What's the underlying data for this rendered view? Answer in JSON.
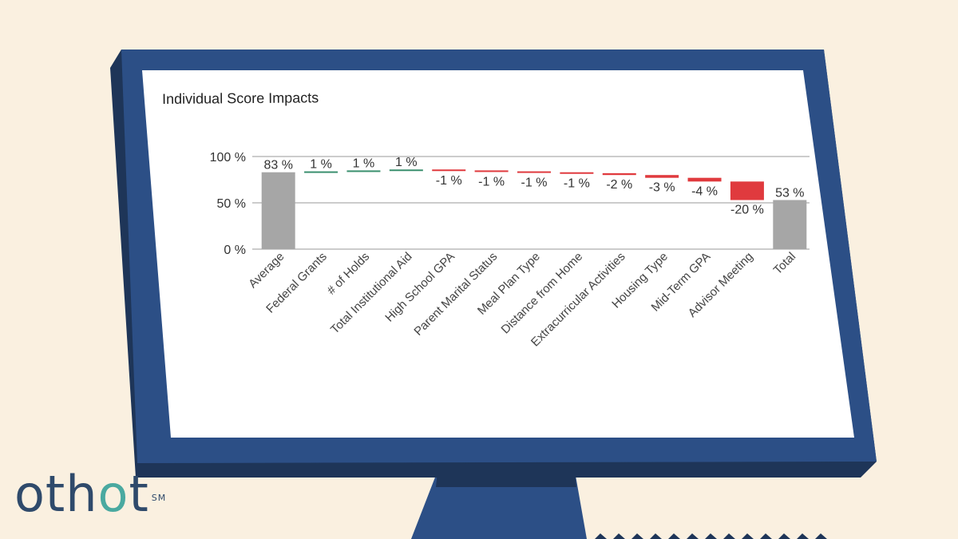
{
  "brand": {
    "logo_main": "oth",
    "logo_accent": "o",
    "logo_end": "t",
    "logo_mark": "SM"
  },
  "colors": {
    "background": "#faf0e0",
    "monitor_frame": "#2c4f86",
    "monitor_shadow": "#1e3558",
    "screen": "#ffffff",
    "total_bar": "#a6a6a6",
    "positive": "#3a8f6e",
    "negative": "#e03a3e"
  },
  "chart_data": {
    "type": "waterfall",
    "title": "Individual Score Impacts",
    "ylim": [
      0,
      100
    ],
    "y_ticks": [
      "100 %",
      "50 %",
      "0 %"
    ],
    "y_tick_values": [
      100,
      50,
      0
    ],
    "grid": true,
    "categories": [
      "Average",
      "Federal Grants",
      "# of Holds",
      "Total Institutional Aid",
      "High School GPA",
      "Parent Marital Status",
      "Meal Plan Type",
      "Distance from Home",
      "Extracurricular Activities",
      "Housing Type",
      "Mid-Term GPA",
      "Advisor Meeting",
      "Total"
    ],
    "values": [
      83,
      1,
      1,
      1,
      -1,
      -1,
      -1,
      -1,
      -2,
      -3,
      -4,
      -20,
      53
    ],
    "kinds": [
      "total",
      "delta",
      "delta",
      "delta",
      "delta",
      "delta",
      "delta",
      "delta",
      "delta",
      "delta",
      "delta",
      "delta",
      "total"
    ],
    "labels": [
      "83 %",
      "1 %",
      "1 %",
      "1 %",
      "-1 %",
      "-1 %",
      "-1 %",
      "-1 %",
      "-2 %",
      "-3 %",
      "-4 %",
      "-20 %",
      "53 %"
    ]
  }
}
